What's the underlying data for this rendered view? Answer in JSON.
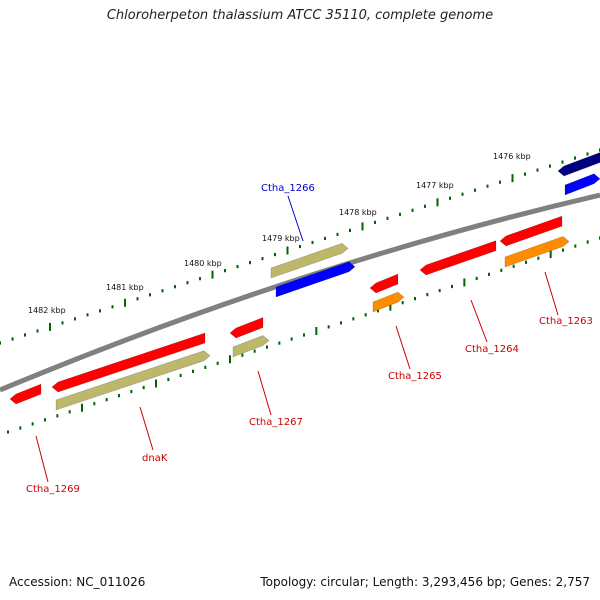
{
  "title": "Chloroherpeton thalassium ATCC 35110, complete genome",
  "footer": {
    "accession": "Accession: NC_011026",
    "summary": "Topology: circular; Length: 3,293,456 bp; Genes: 2,757"
  },
  "ticks": [
    "1476 kbp",
    "1477 kbp",
    "1478 kbp",
    "1479 kbp",
    "1480 kbp",
    "1481 kbp",
    "1482 kbp"
  ],
  "colors": {
    "backbone": "#808080",
    "red": "#ff0000",
    "olive": "#bdb76b",
    "blue": "#0000ff",
    "navy": "#000080",
    "orange": "#ff8c00",
    "tick": "#006400",
    "label_red": "#cc0000",
    "label_blue": "#0000cc"
  },
  "genes": [
    {
      "name": "Ctha_1263",
      "color": "label_red"
    },
    {
      "name": "Ctha_1264",
      "color": "label_red"
    },
    {
      "name": "Ctha_1265",
      "color": "label_red"
    },
    {
      "name": "Ctha_1266",
      "color": "label_blue"
    },
    {
      "name": "Ctha_1267",
      "color": "label_red"
    },
    {
      "name": "dnaK",
      "color": "label_red"
    },
    {
      "name": "Ctha_1269",
      "color": "label_red"
    }
  ]
}
